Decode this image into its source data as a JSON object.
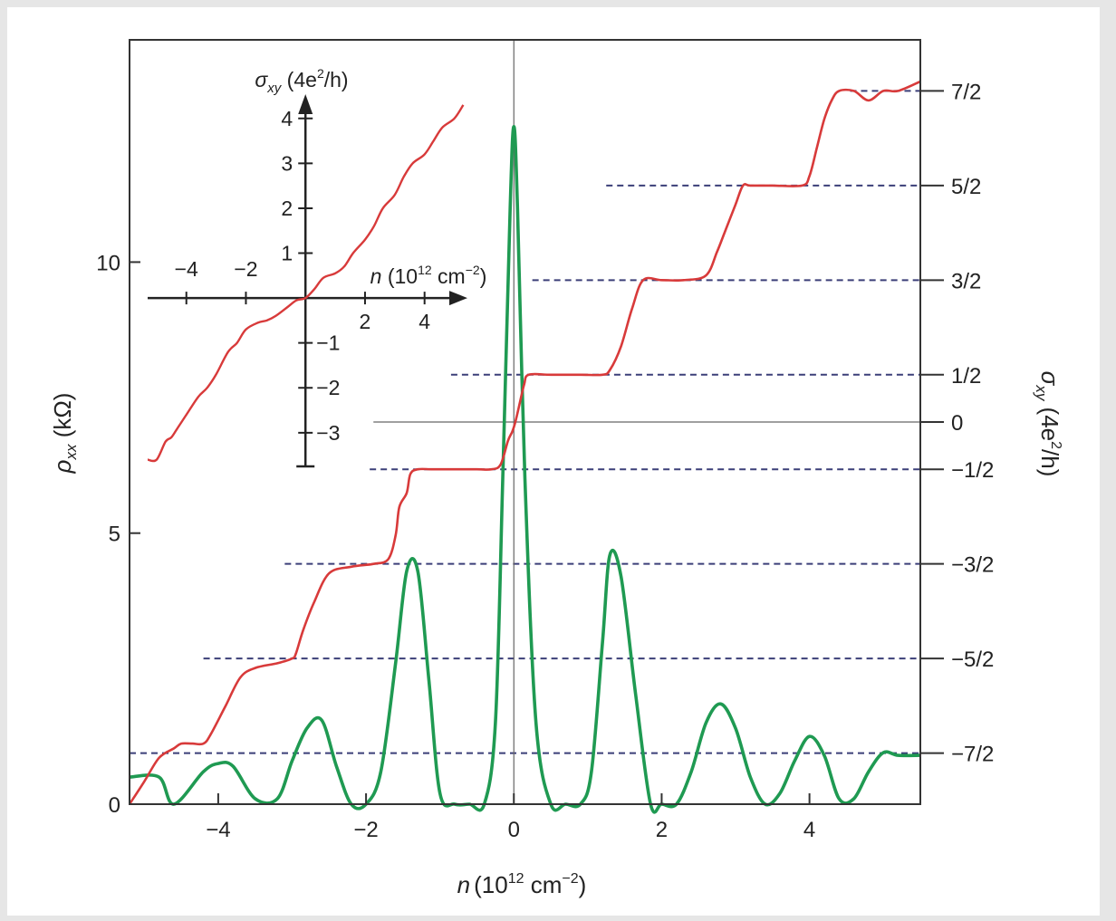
{
  "chart_data": {
    "type": "line",
    "xlabel": {
      "var": "n",
      "text": "(10",
      "sup": "12",
      "text2": " cm",
      "sup2": "−2",
      "close": ")"
    },
    "ylabel_left": {
      "var": "ρ",
      "sub": "xx",
      "text": " (kΩ)"
    },
    "ylabel_right": {
      "var": "σ",
      "sub": "xy",
      "text": " (4e",
      "sup": "2",
      "text2": "/h)"
    },
    "xlim": [
      -5.2,
      5.5
    ],
    "ylim_left": [
      0,
      14.1
    ],
    "xticks": [
      -4,
      -2,
      0,
      2,
      4
    ],
    "xtick_labels": [
      "−4",
      "−2",
      "0",
      "2",
      "4"
    ],
    "yticks_left": [
      0,
      5,
      10
    ],
    "ytick_labels_left": [
      "0",
      "5",
      "10"
    ],
    "right_ticks": [
      {
        "label": "7/2",
        "value": 3.5
      },
      {
        "label": "5/2",
        "value": 2.5
      },
      {
        "label": "3/2",
        "value": 1.5
      },
      {
        "label": "1/2",
        "value": 0.5
      },
      {
        "label": "0",
        "value": 0
      },
      {
        "label": "−1/2",
        "value": -0.5
      },
      {
        "label": "−3/2",
        "value": -1.5
      },
      {
        "label": "−5/2",
        "value": -2.5
      },
      {
        "label": "−7/2",
        "value": -3.5
      }
    ],
    "ylim_right": [
      -4.04,
      4.04
    ],
    "series": [
      {
        "key": "rho_xx",
        "color": "#1f9a52",
        "x": [
          -5.2,
          -4.8,
          -4.6,
          -4.2,
          -4.0,
          -3.8,
          -3.5,
          -3.2,
          -3.0,
          -2.8,
          -2.6,
          -2.4,
          -2.2,
          -2.0,
          -1.8,
          -1.6,
          -1.45,
          -1.3,
          -1.15,
          -1.0,
          -0.8,
          -0.6,
          -0.4,
          -0.25,
          -0.15,
          -0.05,
          0.0,
          0.05,
          0.15,
          0.3,
          0.5,
          0.7,
          0.9,
          1.05,
          1.2,
          1.3,
          1.45,
          1.65,
          1.85,
          2.0,
          2.2,
          2.4,
          2.6,
          2.8,
          3.0,
          3.2,
          3.4,
          3.6,
          3.8,
          4.0,
          4.2,
          4.4,
          4.6,
          4.8,
          5.0,
          5.2,
          5.5
        ],
        "y": [
          0.5,
          0.5,
          0.0,
          0.6,
          0.75,
          0.7,
          0.1,
          0.1,
          0.8,
          1.4,
          1.55,
          0.7,
          0.0,
          0.0,
          0.6,
          2.6,
          4.3,
          4.3,
          2.3,
          0.2,
          0.0,
          0.0,
          0.0,
          1.5,
          6.0,
          11.0,
          12.5,
          11.0,
          6.0,
          1.5,
          0.0,
          0.0,
          0.0,
          0.6,
          3.0,
          4.6,
          4.2,
          2.0,
          0.0,
          0.0,
          0.0,
          0.6,
          1.5,
          1.85,
          1.4,
          0.5,
          0.0,
          0.2,
          0.8,
          1.25,
          0.9,
          0.1,
          0.1,
          0.6,
          0.95,
          0.9,
          0.9
        ]
      },
      {
        "key": "sigma_xy",
        "color": "#d83a3a",
        "x": [
          -5.2,
          -5.0,
          -4.8,
          -4.6,
          -4.5,
          -4.35,
          -4.2,
          -4.1,
          -3.9,
          -3.7,
          -3.5,
          -3.2,
          -3.0,
          -2.95,
          -2.85,
          -2.7,
          -2.5,
          -2.2,
          -1.9,
          -1.7,
          -1.6,
          -1.55,
          -1.45,
          -1.4,
          -1.3,
          -1.1,
          -0.8,
          -0.5,
          -0.3,
          -0.18,
          -0.08,
          -0.02,
          0.02,
          0.08,
          0.14,
          0.2,
          0.5,
          0.9,
          1.2,
          1.3,
          1.45,
          1.6,
          1.75,
          2.0,
          2.3,
          2.6,
          2.75,
          2.85,
          3.0,
          3.1,
          3.2,
          3.5,
          3.9,
          4.0,
          4.1,
          4.2,
          4.3,
          4.4,
          4.6,
          4.8,
          5.0,
          5.2,
          5.5
        ],
        "y": [
          -4.04,
          -3.8,
          -3.55,
          -3.45,
          -3.4,
          -3.4,
          -3.4,
          -3.3,
          -3.0,
          -2.7,
          -2.6,
          -2.55,
          -2.5,
          -2.45,
          -2.2,
          -1.9,
          -1.6,
          -1.53,
          -1.5,
          -1.45,
          -1.2,
          -0.9,
          -0.75,
          -0.55,
          -0.5,
          -0.5,
          -0.5,
          -0.5,
          -0.5,
          -0.45,
          -0.2,
          -0.1,
          0.0,
          0.2,
          0.4,
          0.5,
          0.5,
          0.5,
          0.5,
          0.55,
          0.8,
          1.2,
          1.5,
          1.5,
          1.5,
          1.55,
          1.8,
          2.0,
          2.3,
          2.5,
          2.5,
          2.5,
          2.5,
          2.6,
          2.9,
          3.2,
          3.4,
          3.5,
          3.5,
          3.4,
          3.5,
          3.5,
          3.6
        ]
      }
    ],
    "inset": {
      "ylabel": {
        "var": "σ",
        "sub": "xy",
        "text": " (4e",
        "sup": "2",
        "text2": "/h)"
      },
      "xlabel": {
        "var": "n",
        "text": " (10",
        "sup": "12",
        "text2": " cm",
        "sup2": "−2",
        "close": ")"
      },
      "xticks": [
        -4,
        -2,
        2,
        4
      ],
      "xtick_labels": [
        "−4",
        "−2",
        "2",
        "4"
      ],
      "yticks": [
        4,
        3,
        2,
        1,
        -1,
        -2,
        -3
      ],
      "ytick_labels": [
        "4",
        "3",
        "2",
        "1",
        "−1",
        "−2",
        "−3"
      ],
      "xlim": [
        -5.3,
        5.5
      ],
      "ylim": [
        -3.75,
        4.5
      ],
      "series": {
        "color": "#d83a3a",
        "x": [
          -5.3,
          -5.0,
          -4.7,
          -4.5,
          -4.3,
          -4.0,
          -3.6,
          -3.3,
          -3.0,
          -2.6,
          -2.3,
          -2.0,
          -1.6,
          -1.3,
          -1.0,
          -0.6,
          -0.3,
          0.0,
          0.3,
          0.6,
          1.0,
          1.3,
          1.6,
          2.0,
          2.3,
          2.6,
          3.0,
          3.3,
          3.6,
          4.0,
          4.3,
          4.6,
          5.0,
          5.3
        ],
        "y": [
          -3.6,
          -3.6,
          -3.2,
          -3.1,
          -2.9,
          -2.6,
          -2.2,
          -2.0,
          -1.7,
          -1.2,
          -1.0,
          -0.7,
          -0.55,
          -0.5,
          -0.4,
          -0.2,
          -0.05,
          0.0,
          0.2,
          0.45,
          0.55,
          0.7,
          1.0,
          1.3,
          1.6,
          2.0,
          2.3,
          2.7,
          3.0,
          3.2,
          3.5,
          3.8,
          4.0,
          4.3
        ]
      }
    }
  }
}
